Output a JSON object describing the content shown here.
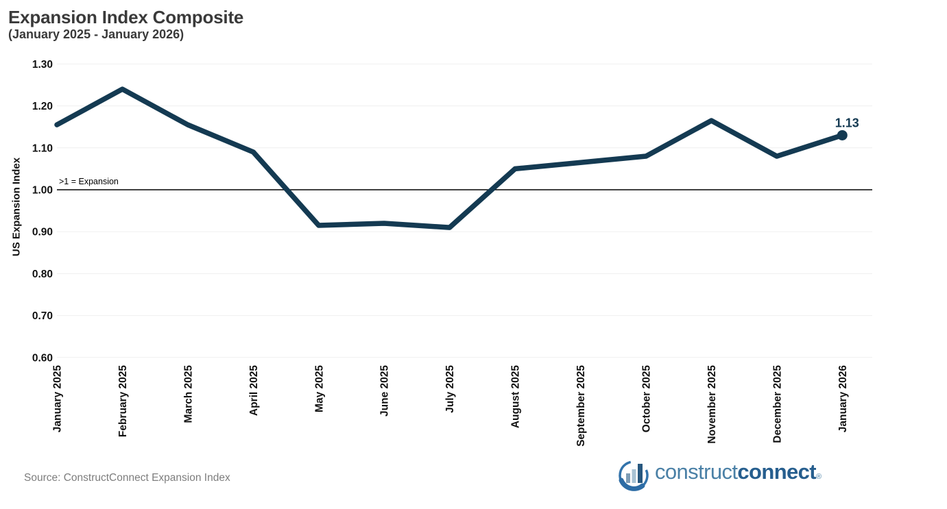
{
  "header": {
    "title": "Expansion Index Composite",
    "subtitle": "(January 2025 - January 2026)"
  },
  "chart_data": {
    "type": "line",
    "title": "Expansion Index Composite",
    "subtitle": "(January 2025 - January 2026)",
    "xlabel": "",
    "ylabel": "US Expansion Index",
    "categories": [
      "January 2025",
      "February 2025",
      "March 2025",
      "April 2025",
      "May 2025",
      "June 2025",
      "July 2025",
      "August 2025",
      "September 2025",
      "October 2025",
      "November 2025",
      "December 2025",
      "January 2026"
    ],
    "series": [
      {
        "name": "US Expansion Index",
        "values": [
          1.155,
          1.24,
          1.155,
          1.09,
          0.915,
          0.92,
          0.91,
          1.05,
          1.065,
          1.08,
          1.165,
          1.08,
          1.13
        ]
      }
    ],
    "ylim": [
      0.6,
      1.3
    ],
    "ytick_labels": [
      "1.30",
      "1.20",
      "1.10",
      "1.00",
      "0.90",
      "0.80",
      "0.70",
      "0.60"
    ],
    "grid": "horizontal-light",
    "legend": "none",
    "reference_line": {
      "value": 1.0,
      "label": ">1 = Expansion"
    },
    "last_value_label": "1.13",
    "line_color": "#143a52",
    "grid_color": "#efefef",
    "reference_line_color": "#000000"
  },
  "footer": {
    "source": "Source: ConstructConnect Expansion Index",
    "logo": {
      "construct": "construct",
      "connect": "connect",
      "registered": "®",
      "construct_color": "#4a80a6",
      "connect_color": "#265e8e"
    }
  }
}
